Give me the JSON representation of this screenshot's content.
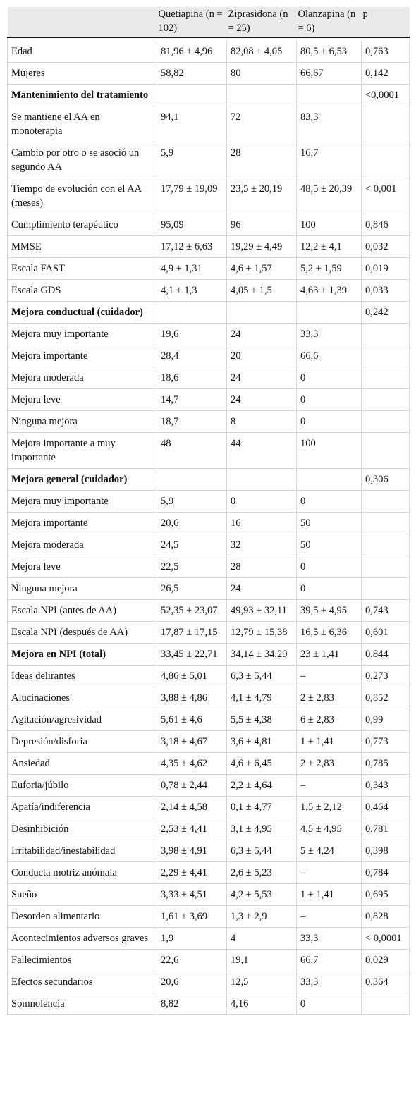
{
  "headers": [
    "",
    "Quetiapina (n = 102)",
    "Ziprasidona (n = 25)",
    "Olanzapina (n = 6)",
    "p"
  ],
  "rows": [
    {
      "label": "Edad",
      "q": "81,96 ± 4,96",
      "z": "82,08 ± 4,05",
      "o": "80,5 ± 6,53",
      "p": "0,763",
      "bold": false
    },
    {
      "label": "Mujeres",
      "q": "58,82",
      "z": "80",
      "o": "66,67",
      "p": "0,142",
      "bold": false
    },
    {
      "label": "Mantenimiento del tratamiento",
      "q": "",
      "z": "",
      "o": "",
      "p": "<0,0001",
      "bold": true
    },
    {
      "label": "Se mantiene el AA en monoterapia",
      "q": "94,1",
      "z": "72",
      "o": "83,3",
      "p": "",
      "bold": false
    },
    {
      "label": "Cambio por otro o se asoció un segundo AA",
      "q": "5,9",
      "z": "28",
      "o": "16,7",
      "p": "",
      "bold": false
    },
    {
      "label": "Tiempo de evolución con el AA (meses)",
      "q": "17,79 ± 19,09",
      "z": "23,5 ± 20,19",
      "o": "48,5 ± 20,39",
      "p": "< 0,001",
      "bold": false
    },
    {
      "label": "Cumplimiento terapéutico",
      "q": "95,09",
      "z": "96",
      "o": "100",
      "p": "0,846",
      "bold": false
    },
    {
      "label": "MMSE",
      "q": "17,12 ± 6,63",
      "z": "19,29 ± 4,49",
      "o": "12,2 ± 4,1",
      "p": "0,032",
      "bold": false
    },
    {
      "label": "Escala FAST",
      "q": "4,9 ± 1,31",
      "z": "4,6 ± 1,57",
      "o": "5,2 ± 1,59",
      "p": "0,019",
      "bold": false
    },
    {
      "label": "Escala GDS",
      "q": "4,1 ± 1,3",
      "z": "4,05 ± 1,5",
      "o": "4,63 ± 1,39",
      "p": "0,033",
      "bold": false
    },
    {
      "label": "Mejora conductual (cuidador)",
      "q": "",
      "z": "",
      "o": "",
      "p": "0,242",
      "bold": true
    },
    {
      "label": "Mejora muy importante",
      "q": "19,6",
      "z": "24",
      "o": "33,3",
      "p": "",
      "bold": false
    },
    {
      "label": "Mejora importante",
      "q": "28,4",
      "z": "20",
      "o": "66,6",
      "p": "",
      "bold": false
    },
    {
      "label": "Mejora moderada",
      "q": "18,6",
      "z": "24",
      "o": "0",
      "p": "",
      "bold": false
    },
    {
      "label": "Mejora leve",
      "q": "14,7",
      "z": "24",
      "o": "0",
      "p": "",
      "bold": false
    },
    {
      "label": "Ninguna mejora",
      "q": "18,7",
      "z": "8",
      "o": "0",
      "p": "",
      "bold": false
    },
    {
      "label": "Mejora importante a muy importante",
      "q": "48",
      "z": "44",
      "o": "100",
      "p": "",
      "bold": false
    },
    {
      "label": "Mejora general (cuidador)",
      "q": "",
      "z": "",
      "o": "",
      "p": "0,306",
      "bold": true
    },
    {
      "label": "Mejora muy importante",
      "q": "5,9",
      "z": "0",
      "o": "0",
      "p": "",
      "bold": false
    },
    {
      "label": "Mejora importante",
      "q": "20,6",
      "z": "16",
      "o": "50",
      "p": "",
      "bold": false
    },
    {
      "label": "Mejora moderada",
      "q": "24,5",
      "z": "32",
      "o": "50",
      "p": "",
      "bold": false
    },
    {
      "label": "Mejora leve",
      "q": "22,5",
      "z": "28",
      "o": "0",
      "p": "",
      "bold": false
    },
    {
      "label": "Ninguna mejora",
      "q": "26,5",
      "z": "24",
      "o": "0",
      "p": "",
      "bold": false
    },
    {
      "label": "Escala NPI (antes de AA)",
      "q": "52,35 ± 23,07",
      "z": "49,93 ± 32,11",
      "o": "39,5 ± 4,95",
      "p": "0,743",
      "bold": false
    },
    {
      "label": "Escala NPI (después de AA)",
      "q": "17,87 ± 17,15",
      "z": "12,79 ± 15,38",
      "o": "16,5 ± 6,36",
      "p": "0,601",
      "bold": false
    },
    {
      "label": "Mejora en NPI (total)",
      "q": "33,45 ± 22,71",
      "z": "34,14 ± 34,29",
      "o": "23 ± 1,41",
      "p": "0,844",
      "bold": true
    },
    {
      "label": "Ideas delirantes",
      "q": "4,86 ± 5,01",
      "z": "6,3 ± 5,44",
      "o": "–",
      "p": "0,273",
      "bold": false
    },
    {
      "label": "Alucinaciones",
      "q": "3,88 ± 4,86",
      "z": "4,1 ± 4,79",
      "o": "2 ± 2,83",
      "p": "0,852",
      "bold": false
    },
    {
      "label": "Agitación/agresividad",
      "q": "5,61 ± 4,6",
      "z": "5,5 ± 4,38",
      "o": "6 ± 2,83",
      "p": "0,99",
      "bold": false
    },
    {
      "label": "Depresión/disforia",
      "q": "3,18 ± 4,67",
      "z": "3,6 ± 4,81",
      "o": "1 ± 1,41",
      "p": "0,773",
      "bold": false
    },
    {
      "label": "Ansiedad",
      "q": "4,35 ± 4,62",
      "z": "4,6 ± 6,45",
      "o": "2 ± 2,83",
      "p": "0,785",
      "bold": false
    },
    {
      "label": "Euforia/júbilo",
      "q": "0,78 ± 2,44",
      "z": "2,2 ± 4,64",
      "o": "–",
      "p": "0,343",
      "bold": false
    },
    {
      "label": "Apatía/indiferencia",
      "q": "2,14 ± 4,58",
      "z": "0,1 ± 4,77",
      "o": "1,5 ± 2,12",
      "p": "0,464",
      "bold": false
    },
    {
      "label": "Desinhibición",
      "q": "2,53 ± 4,41",
      "z": "3,1 ± 4,95",
      "o": "4,5 ± 4,95",
      "p": "0,781",
      "bold": false
    },
    {
      "label": "Irritabilidad/inestabilidad",
      "q": "3,98 ± 4,91",
      "z": "6,3 ± 5,44",
      "o": "5 ± 4,24",
      "p": "0,398",
      "bold": false
    },
    {
      "label": "Conducta motriz anómala",
      "q": "2,29 ± 4,41",
      "z": "2,6 ± 5,23",
      "o": "–",
      "p": "0,784",
      "bold": false
    },
    {
      "label": "Sueño",
      "q": "3,33 ± 4,51",
      "z": "4,2 ± 5,53",
      "o": "1 ± 1,41",
      "p": "0,695",
      "bold": false
    },
    {
      "label": "Desorden alimentario",
      "q": "1,61 ± 3,69",
      "z": "1,3 ± 2,9",
      "o": "–",
      "p": "0,828",
      "bold": false
    },
    {
      "label": "Acontecimientos adversos graves",
      "q": "1,9",
      "z": "4",
      "o": "33,3",
      "p": "< 0,0001",
      "bold": false
    },
    {
      "label": "Fallecimientos",
      "q": "22,6",
      "z": "19,1",
      "o": "66,7",
      "p": "0,029",
      "bold": false
    },
    {
      "label": "Efectos secundarios",
      "q": "20,6",
      "z": "12,5",
      "o": "33,3",
      "p": "0,364",
      "bold": false
    },
    {
      "label": "Somnolencia",
      "q": "8,82",
      "z": "4,16",
      "o": "0",
      "p": "",
      "bold": false
    }
  ]
}
